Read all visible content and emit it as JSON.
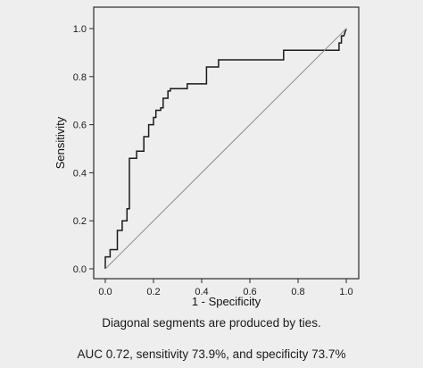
{
  "chart_data": {
    "type": "line",
    "xlabel": "1 - Specificity",
    "ylabel": "Sensitivity",
    "xlim": [
      0,
      1
    ],
    "ylim": [
      0,
      1
    ],
    "xticks": [
      "0.0",
      "0.2",
      "0.4",
      "0.6",
      "0.8",
      "1.0"
    ],
    "yticks": [
      "0.0",
      "0.2",
      "0.4",
      "0.6",
      "0.8",
      "1.0"
    ],
    "grid": false,
    "series": [
      {
        "style": "step",
        "x": [
          0.0,
          0.0,
          0.02,
          0.02,
          0.05,
          0.05,
          0.07,
          0.07,
          0.09,
          0.09,
          0.1,
          0.1,
          0.13,
          0.13,
          0.16,
          0.16,
          0.18,
          0.18,
          0.2,
          0.2,
          0.21,
          0.21,
          0.23,
          0.23,
          0.24,
          0.24,
          0.26,
          0.26,
          0.27,
          0.27,
          0.34,
          0.34,
          0.42,
          0.42,
          0.47,
          0.47,
          0.74,
          0.74,
          0.97,
          0.97,
          0.98,
          0.98,
          0.99,
          1.0
        ],
        "y": [
          0.0,
          0.05,
          0.05,
          0.08,
          0.08,
          0.16,
          0.16,
          0.2,
          0.2,
          0.25,
          0.25,
          0.46,
          0.46,
          0.49,
          0.49,
          0.55,
          0.55,
          0.6,
          0.6,
          0.63,
          0.63,
          0.66,
          0.66,
          0.67,
          0.67,
          0.71,
          0.71,
          0.74,
          0.74,
          0.75,
          0.75,
          0.77,
          0.77,
          0.84,
          0.84,
          0.87,
          0.87,
          0.91,
          0.91,
          0.94,
          0.94,
          0.97,
          0.97,
          1.0
        ]
      },
      {
        "style": "reference",
        "x": [
          0,
          1
        ],
        "y": [
          0,
          1
        ]
      }
    ],
    "colors": {
      "curve": "#1a1a1a",
      "reference": "#8c8c8c",
      "frame": "#2a2a2a",
      "plot_background": "#eeeeee"
    }
  },
  "captions": {
    "ties": "Diagonal segments are produced by ties.",
    "stats": "AUC 0.72, sensitivity 73.9%, and specificity 73.7%"
  }
}
